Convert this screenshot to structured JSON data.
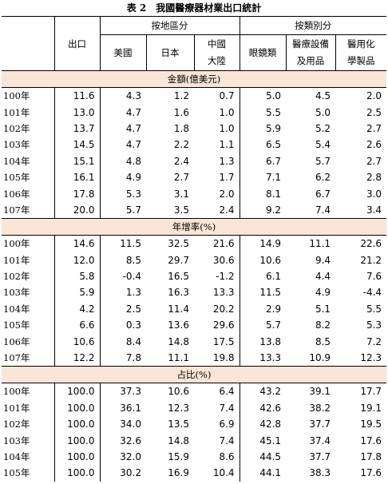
{
  "title": "表 2　我國醫療器材業出口統計",
  "header": {
    "export": "出口",
    "by_region": "按地區分",
    "by_category": "按類別分",
    "columns": [
      "美國",
      "日本",
      "中國\n大陸",
      "眼鏡類",
      "醫療設備\n及用品",
      "醫用化\n學製品"
    ]
  },
  "sections": [
    {
      "label": "金額(億美元)",
      "rows": [
        [
          "100年",
          "11.6",
          "4.3",
          "1.2",
          "0.7",
          "5.0",
          "4.5",
          "2.0"
        ],
        [
          "101年",
          "13.0",
          "4.7",
          "1.6",
          "1.0",
          "5.5",
          "5.0",
          "2.5"
        ],
        [
          "102年",
          "13.7",
          "4.7",
          "1.8",
          "1.0",
          "5.9",
          "5.2",
          "2.7"
        ],
        [
          "103年",
          "14.5",
          "4.7",
          "2.2",
          "1.1",
          "6.5",
          "5.4",
          "2.6"
        ],
        [
          "104年",
          "15.1",
          "4.8",
          "2.4",
          "1.3",
          "6.7",
          "5.7",
          "2.7"
        ],
        [
          "105年",
          "16.1",
          "4.9",
          "2.7",
          "1.7",
          "7.1",
          "6.2",
          "2.8"
        ],
        [
          "106年",
          "17.8",
          "5.3",
          "3.1",
          "2.0",
          "8.1",
          "6.7",
          "3.0"
        ],
        [
          "107年",
          "20.0",
          "5.7",
          "3.5",
          "2.4",
          "9.2",
          "7.4",
          "3.4"
        ]
      ]
    },
    {
      "label": "年增率(%)",
      "rows": [
        [
          "100年",
          "14.6",
          "11.5",
          "32.5",
          "21.6",
          "14.9",
          "11.1",
          "22.6"
        ],
        [
          "101年",
          "12.0",
          "8.5",
          "29.7",
          "30.6",
          "10.6",
          "9.4",
          "21.2"
        ],
        [
          "102年",
          "5.8",
          "-0.4",
          "16.5",
          "-1.2",
          "6.1",
          "4.4",
          "7.6"
        ],
        [
          "103年",
          "5.9",
          "1.3",
          "16.3",
          "13.3",
          "11.5",
          "4.9",
          "-4.4"
        ],
        [
          "104年",
          "4.2",
          "2.5",
          "11.4",
          "20.2",
          "2.9",
          "5.1",
          "5.5"
        ],
        [
          "105年",
          "6.6",
          "0.3",
          "13.6",
          "29.6",
          "5.7",
          "8.2",
          "5.3"
        ],
        [
          "106年",
          "10.6",
          "8.4",
          "14.8",
          "17.5",
          "13.8",
          "8.5",
          "7.2"
        ],
        [
          "107年",
          "12.2",
          "7.8",
          "11.1",
          "19.8",
          "13.3",
          "10.9",
          "12.3"
        ]
      ]
    },
    {
      "label": "占比(%)",
      "rows": [
        [
          "100年",
          "100.0",
          "37.3",
          "10.6",
          "6.4",
          "43.2",
          "39.1",
          "17.7"
        ],
        [
          "101年",
          "100.0",
          "36.1",
          "12.3",
          "7.4",
          "42.6",
          "38.2",
          "19.1"
        ],
        [
          "102年",
          "100.0",
          "34.0",
          "13.5",
          "6.9",
          "42.8",
          "37.7",
          "19.5"
        ],
        [
          "103年",
          "100.0",
          "32.6",
          "14.8",
          "7.4",
          "45.1",
          "37.4",
          "17.6"
        ],
        [
          "104年",
          "100.0",
          "32.0",
          "15.9",
          "8.6",
          "44.5",
          "37.7",
          "17.8"
        ],
        [
          "105年",
          "100.0",
          "30.2",
          "16.9",
          "10.4",
          "44.1",
          "38.3",
          "17.6"
        ]
      ]
    }
  ]
}
